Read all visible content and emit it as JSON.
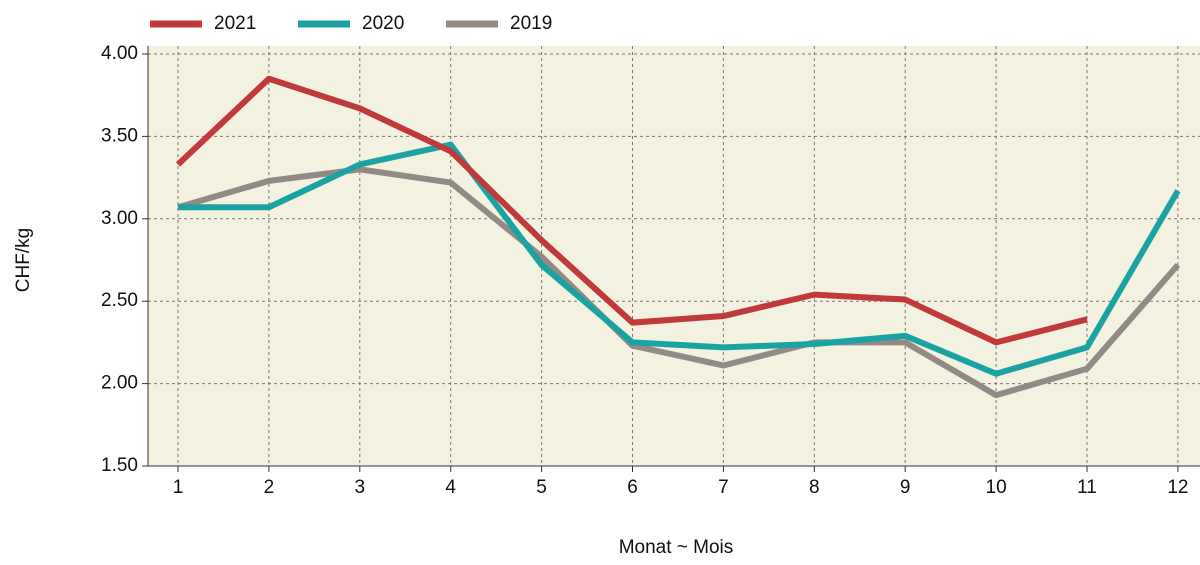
{
  "chart_data": {
    "type": "line",
    "x_label": "Monat  ~  Mois",
    "y_label": "CHF/kg",
    "categories": [
      "1",
      "2",
      "3",
      "4",
      "5",
      "6",
      "7",
      "8",
      "9",
      "10",
      "11",
      "12"
    ],
    "series": [
      {
        "name": "2021",
        "color": "#c0393b",
        "values": [
          3.33,
          3.85,
          3.67,
          3.41,
          2.87,
          2.37,
          2.41,
          2.54,
          2.51,
          2.25,
          2.39,
          null
        ]
      },
      {
        "name": "2020",
        "color": "#1ba3a3",
        "values": [
          3.07,
          3.07,
          3.33,
          3.45,
          2.72,
          2.25,
          2.22,
          2.24,
          2.29,
          2.06,
          2.22,
          3.17
        ]
      },
      {
        "name": "2019",
        "color": "#938a86",
        "values": [
          3.07,
          3.23,
          3.3,
          3.22,
          2.77,
          2.23,
          2.11,
          2.25,
          2.25,
          1.93,
          2.09,
          2.72
        ]
      }
    ],
    "ylim": [
      1.5,
      4.0
    ],
    "yticks": [
      {
        "value": 1.5,
        "label": "1.50"
      },
      {
        "value": 2.0,
        "label": "2.00"
      },
      {
        "value": 2.5,
        "label": "2.50"
      },
      {
        "value": 3.0,
        "label": "3.00"
      },
      {
        "value": 3.5,
        "label": "3.50"
      },
      {
        "value": 4.0,
        "label": "4.00"
      }
    ],
    "grid": true,
    "legend": "top"
  }
}
